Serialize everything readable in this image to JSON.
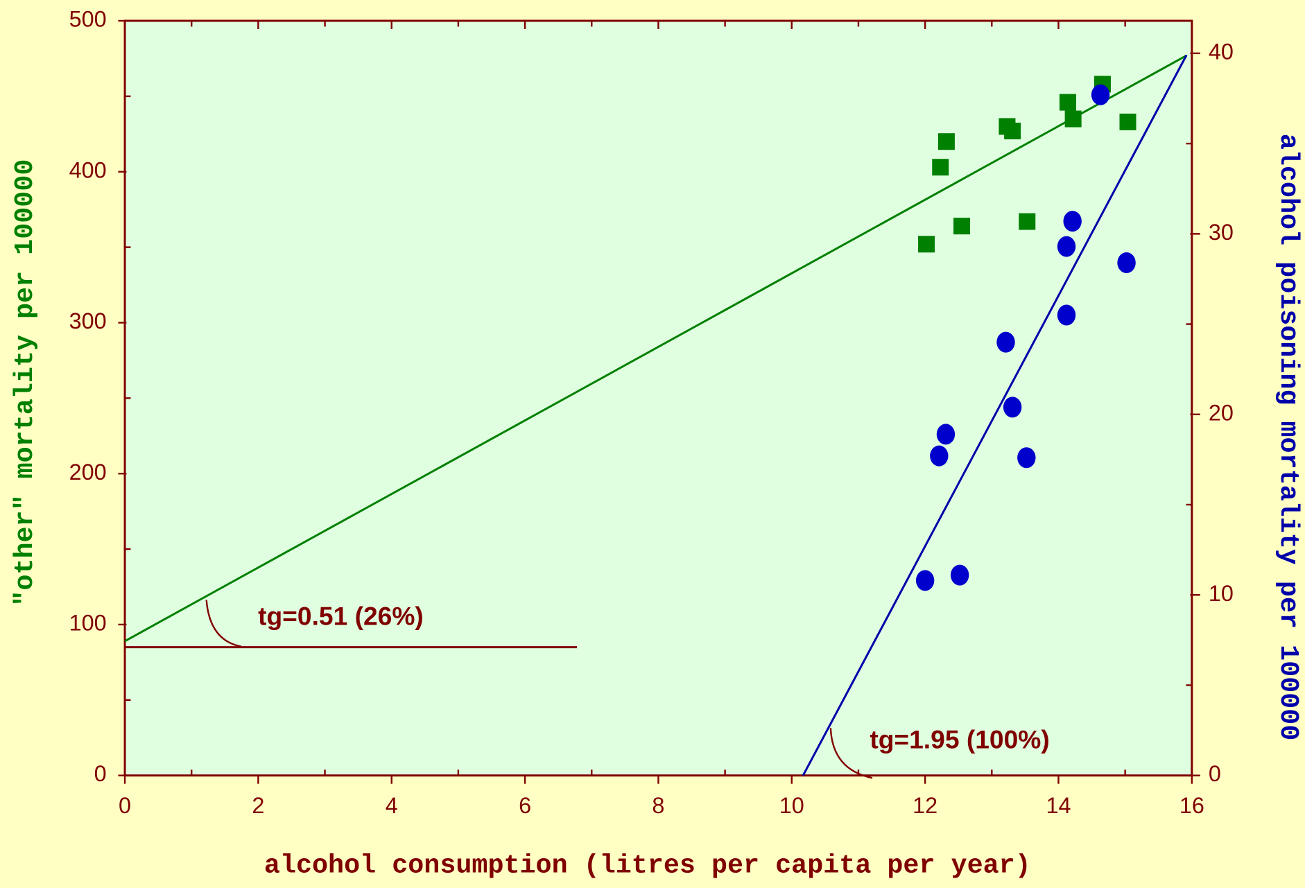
{
  "chart_data": {
    "type": "scatter",
    "x_label": "alcohol consumption  (litres per capita per year)",
    "y_label": "\"other\" mortality per 100000",
    "y2_label": "alcohol poisoning mortality per 100000",
    "xlim": [
      0,
      16
    ],
    "xticks": [
      0,
      2,
      4,
      6,
      8,
      10,
      12,
      14,
      16
    ],
    "ylim": [
      0,
      500
    ],
    "yticks": [
      0,
      100,
      200,
      300,
      400,
      500
    ],
    "y2lim": [
      0,
      41.8
    ],
    "y2ticks": [
      0,
      10,
      20,
      30,
      40
    ],
    "series": [
      {
        "type": "scatter",
        "marker": "square",
        "color": "#008000",
        "x": [
          12.02,
          12.23,
          12.32,
          12.55,
          13.23,
          13.31,
          13.53,
          14.14,
          14.22,
          14.66,
          15.04
        ],
        "values": [
          352,
          403,
          420,
          364,
          430,
          427,
          367,
          446,
          435,
          458,
          433
        ]
      },
      {
        "type": "scatter",
        "marker": "circle",
        "color": "#0000cc",
        "axis": "y2",
        "x": [
          12.0,
          12.21,
          12.31,
          12.52,
          13.21,
          13.31,
          13.52,
          14.12,
          14.12,
          14.21,
          14.63,
          15.02
        ],
        "values": [
          10.8,
          17.7,
          18.9,
          11.1,
          24.0,
          20.4,
          17.6,
          29.3,
          25.5,
          30.7,
          37.7,
          28.4
        ]
      },
      {
        "type": "line",
        "color": "#008000",
        "x": [
          0,
          15.92
        ],
        "values": [
          89,
          477
        ]
      },
      {
        "type": "line",
        "color": "#0000aa",
        "axis": "y2",
        "x": [
          10.17,
          15.92
        ],
        "values": [
          0,
          39.9
        ]
      },
      {
        "type": "line",
        "color": "#800000",
        "x": [
          0,
          6.78
        ],
        "values": [
          85,
          85
        ]
      }
    ],
    "annotations": [
      "tg=0.51 (26%)",
      "tg=1.95 (100%)"
    ]
  }
}
